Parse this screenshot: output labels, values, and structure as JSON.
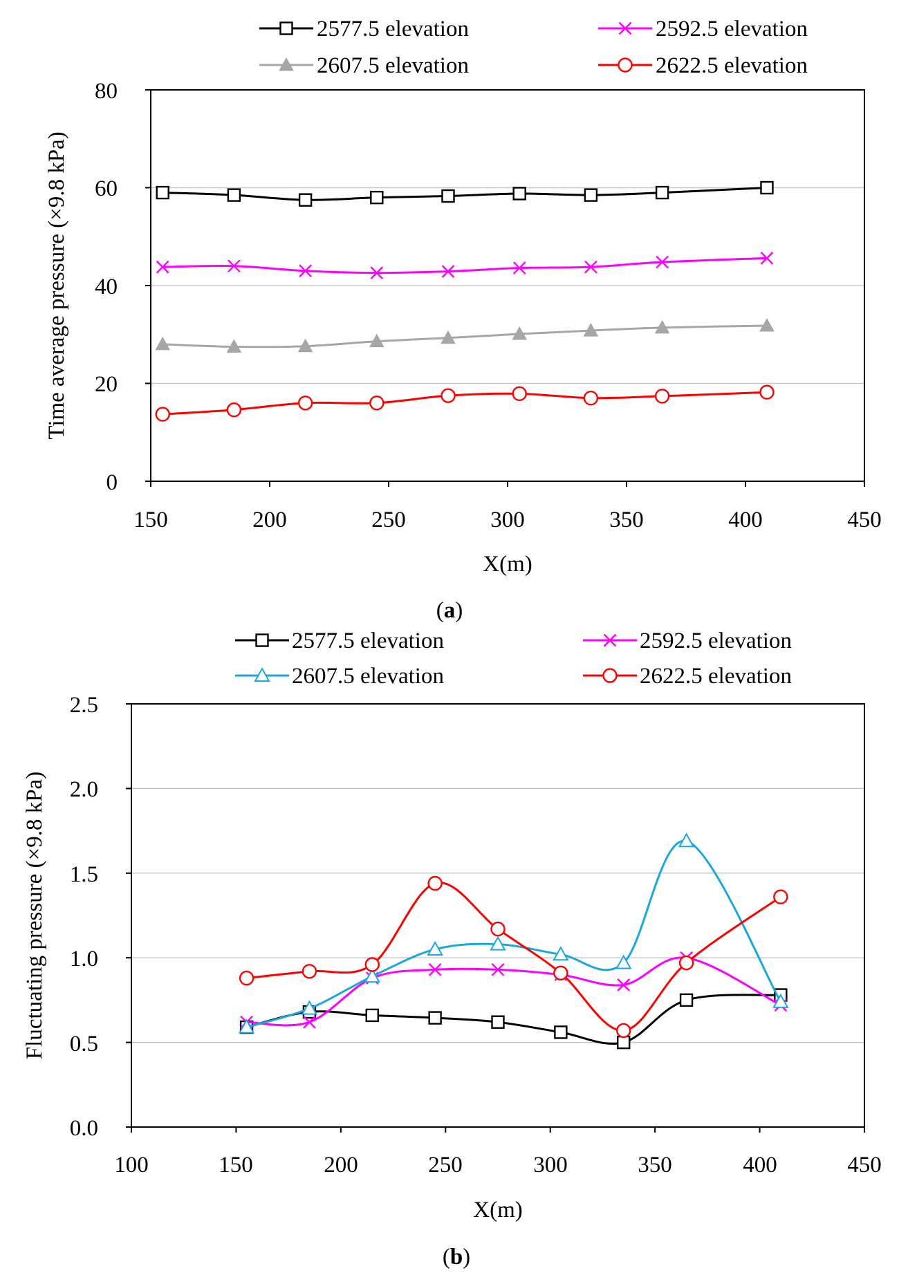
{
  "chart_data": [
    {
      "type": "line",
      "caption_open": "(",
      "caption_letter": "a",
      "caption_close": ")",
      "title": "",
      "xlabel": "X(m)",
      "ylabel": "Time average pressure (×9.8 kPa)",
      "xlim": [
        150,
        450
      ],
      "ylim": [
        0,
        80
      ],
      "xticks": [
        "150",
        "200",
        "250",
        "300",
        "350",
        "400",
        "450"
      ],
      "yticks": [
        "0",
        "20",
        "40",
        "60",
        "80"
      ],
      "grid": "horizontal",
      "legend_position": "top",
      "x": [
        155,
        185,
        215,
        245,
        275,
        305,
        335,
        365,
        409
      ],
      "series": [
        {
          "name": "2577.5 elevation",
          "color": "#000000",
          "marker": "square",
          "values": [
            59,
            58.5,
            57.5,
            58,
            58.3,
            58.8,
            58.5,
            59,
            60
          ]
        },
        {
          "name": "2592.5 elevation",
          "color": "#ff00ff",
          "marker": "x",
          "values": [
            43.8,
            44,
            43,
            42.6,
            42.9,
            43.6,
            43.8,
            44.8,
            45.6
          ]
        },
        {
          "name": "2607.5 elevation",
          "color": "#a6a6a6",
          "marker": "filled-triangle",
          "values": [
            28,
            27.5,
            27.6,
            28.6,
            29.3,
            30.1,
            30.8,
            31.4,
            31.8
          ]
        },
        {
          "name": "2622.5 elevation",
          "color": "#ff0000",
          "marker": "circle",
          "values": [
            13.7,
            14.6,
            16,
            16,
            17.5,
            17.9,
            17,
            17.4,
            18.2
          ]
        }
      ]
    },
    {
      "type": "line",
      "caption_open": "(",
      "caption_letter": "b",
      "caption_close": ")",
      "title": "",
      "xlabel": "X(m)",
      "ylabel": "Fluctuating pressure (×9.8 kPa)",
      "xlim": [
        100,
        450
      ],
      "ylim": [
        0,
        2.5
      ],
      "xticks": [
        "100",
        "150",
        "200",
        "250",
        "300",
        "350",
        "400",
        "450"
      ],
      "yticks": [
        "0.0",
        "0.5",
        "1.0",
        "1.5",
        "2.0",
        "2.5"
      ],
      "grid": "horizontal",
      "legend_position": "top",
      "x": [
        155,
        185,
        215,
        245,
        275,
        305,
        335,
        365,
        410
      ],
      "series": [
        {
          "name": "2577.5 elevation",
          "color": "#000000",
          "marker": "square",
          "values": [
            0.59,
            0.68,
            0.66,
            0.645,
            0.62,
            0.56,
            0.5,
            0.75,
            0.78
          ]
        },
        {
          "name": "2592.5 elevation",
          "color": "#ff00ff",
          "marker": "x",
          "values": [
            0.62,
            0.62,
            0.88,
            0.93,
            0.93,
            0.9,
            0.84,
            1.0,
            0.72
          ]
        },
        {
          "name": "2607.5 elevation",
          "color": "#1aa7e0",
          "marker": "open-triangle",
          "values": [
            0.59,
            0.7,
            0.89,
            1.05,
            1.08,
            1.02,
            0.97,
            1.69,
            0.74
          ]
        },
        {
          "name": "2622.5 elevation",
          "color": "#ff0000",
          "marker": "circle",
          "values": [
            0.88,
            0.92,
            0.96,
            1.44,
            1.17,
            0.91,
            0.57,
            0.97,
            1.36
          ]
        }
      ]
    }
  ]
}
